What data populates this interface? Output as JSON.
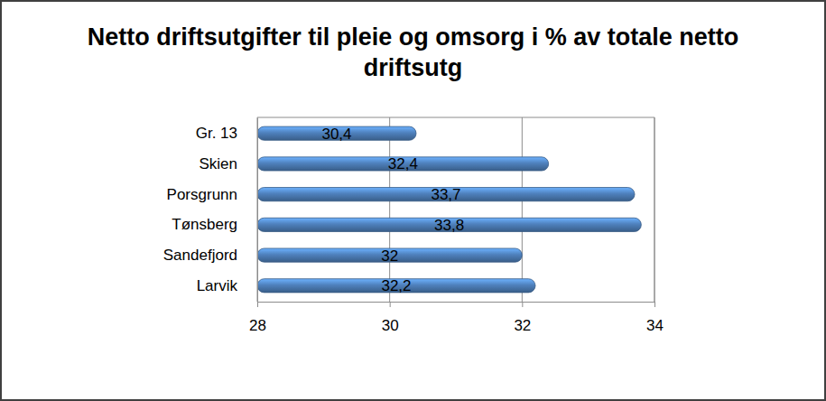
{
  "chart_data": {
    "type": "bar",
    "orientation": "horizontal",
    "title": "Netto driftsutgifter til pleie og omsorg i % av totale netto driftsutg",
    "categories": [
      "Gr. 13",
      "Skien",
      "Porsgrunn",
      "Tønsberg",
      "Sandefjord",
      "Larvik"
    ],
    "values": [
      30.4,
      32.4,
      33.7,
      33.8,
      32,
      32.2
    ],
    "value_labels": [
      "30,4",
      "32,4",
      "33,7",
      "33,8",
      "32",
      "32,2"
    ],
    "color": "#4f81bd",
    "xlim": [
      28,
      34
    ],
    "xticks": [
      28,
      30,
      32,
      34
    ],
    "grid": true,
    "data_labels": true
  }
}
